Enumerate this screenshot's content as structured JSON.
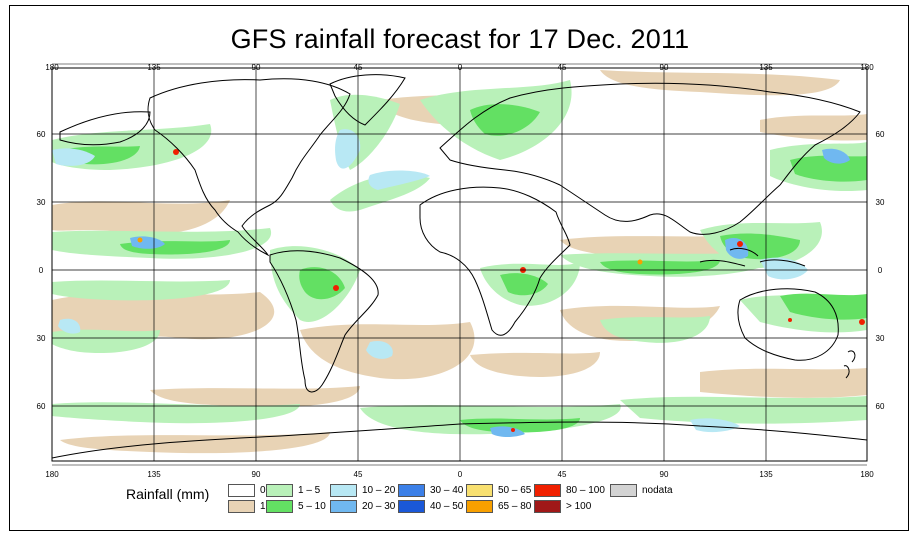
{
  "title": "GFS rainfall forecast for 17 Dec. 2011",
  "axes": {
    "lon_labels": [
      "180",
      "135",
      "90",
      "45",
      "0",
      "45",
      "90",
      "135",
      "180"
    ],
    "lat_labels": [
      "60",
      "30",
      "0",
      "30",
      "60"
    ]
  },
  "legend": {
    "title": "Rainfall (mm)",
    "classes": [
      {
        "label": "0",
        "color": "#ffffff"
      },
      {
        "label": "1",
        "color": "#e8d3b5"
      },
      {
        "label": "1 – 5",
        "color": "#b9f1b9"
      },
      {
        "label": "5 – 10",
        "color": "#63e063"
      },
      {
        "label": "10 – 20",
        "color": "#b8e8f4"
      },
      {
        "label": "20 – 30",
        "color": "#70b8f0"
      },
      {
        "label": "30 – 40",
        "color": "#3c80e8"
      },
      {
        "label": "40 – 50",
        "color": "#1a58d8"
      },
      {
        "label": "50 – 65",
        "color": "#f8e070"
      },
      {
        "label": "65 – 80",
        "color": "#f8a000"
      },
      {
        "label": "80 – 100",
        "color": "#f02000"
      },
      {
        "label": "> 100",
        "color": "#a01818"
      },
      {
        "label": "nodata",
        "color": "#d3d3d3"
      }
    ]
  }
}
